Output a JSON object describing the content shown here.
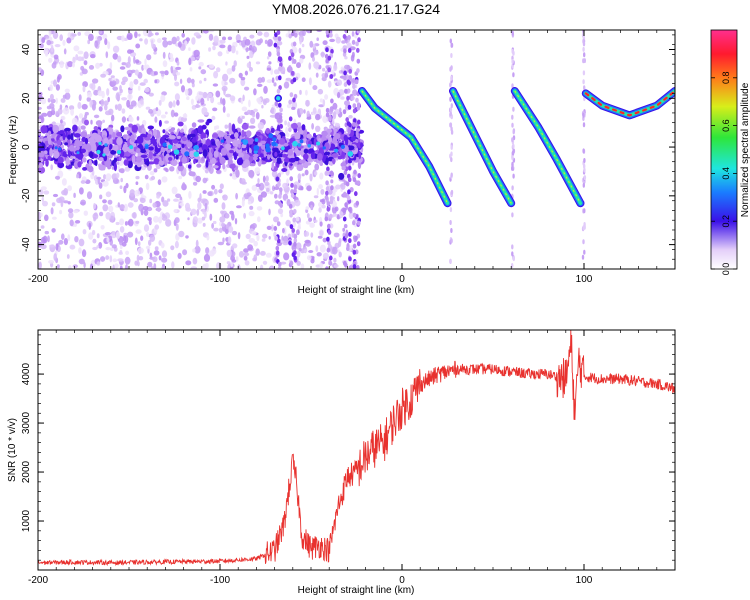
{
  "title": "YM08.2026.076.21.17.G24",
  "colors": {
    "snr_line": "#e8312e",
    "spectrogram_low": "#e9d8fb",
    "spectrogram_mid": "#5a18e6",
    "track": "#22e6a8"
  },
  "colorbar": {
    "label": "Normalized spectral amplitude",
    "ticks": [
      "0.0",
      "0.2",
      "0.4",
      "0.6",
      "0.8"
    ],
    "tick_values": [
      0.0,
      0.2,
      0.4,
      0.6,
      0.8
    ],
    "range": [
      0,
      1
    ]
  },
  "chart_data": [
    {
      "type": "heatmap",
      "xlabel": "Height of straight line (km)",
      "ylabel": "Frequency (Hz)",
      "xlim": [
        -200,
        150
      ],
      "ylim": [
        -50,
        48
      ],
      "x_ticks": [
        -200,
        -100,
        0,
        100
      ],
      "x_tick_labels": [
        "-200",
        "-100",
        "0",
        "100"
      ],
      "y_ticks": [
        -40,
        -20,
        0,
        20,
        40
      ],
      "y_tick_labels": [
        "-40",
        "-20",
        "0",
        "20",
        "40"
      ],
      "noise_band": {
        "x_range": [
          -200,
          -25
        ],
        "center_freq": 0,
        "half_width": 12
      },
      "tracks": [
        {
          "segment": 1,
          "x": [
            -22,
            -15,
            -5,
            5,
            15,
            25
          ],
          "y": [
            23,
            16,
            10,
            4,
            -8,
            -23
          ]
        },
        {
          "segment": 2,
          "x": [
            28,
            40,
            50,
            60
          ],
          "y": [
            23,
            5,
            -10,
            -23
          ]
        },
        {
          "segment": 3,
          "x": [
            62,
            75,
            85,
            98
          ],
          "y": [
            23,
            8,
            -5,
            -23
          ]
        },
        {
          "segment": 4,
          "x": [
            101,
            110,
            125,
            140,
            150
          ],
          "y": [
            22,
            17,
            13,
            17,
            23
          ]
        }
      ],
      "discontinuities": [
        -68,
        27,
        61,
        100
      ],
      "colorbar": "Normalized spectral amplitude"
    },
    {
      "type": "line",
      "xlabel": "Height of straight line (km)",
      "ylabel": "SNR (10 * v/v)",
      "xlim": [
        -200,
        150
      ],
      "ylim": [
        0,
        4900
      ],
      "x_ticks": [
        -200,
        -100,
        0,
        100
      ],
      "x_tick_labels": [
        "-200",
        "-100",
        "0",
        "100"
      ],
      "y_ticks": [
        1000,
        2000,
        3000,
        4000
      ],
      "y_tick_labels": [
        "1000",
        "2000",
        "3000",
        "4000"
      ],
      "series": [
        {
          "x": [
            -200,
            -180,
            -160,
            -140,
            -120,
            -100,
            -80,
            -70,
            -65,
            -60,
            -58,
            -55,
            -50,
            -45,
            -40,
            -35,
            -30,
            -25,
            -20,
            -15,
            -10,
            -5,
            0,
            5,
            10,
            20,
            30,
            40,
            50,
            60,
            70,
            80,
            90,
            93,
            95,
            97,
            100,
            110,
            120,
            130,
            140,
            150
          ],
          "y": [
            150,
            160,
            150,
            160,
            170,
            180,
            230,
            400,
            900,
            2200,
            1800,
            700,
            450,
            500,
            400,
            1300,
            1900,
            2000,
            2300,
            2500,
            2600,
            3000,
            3300,
            3500,
            3800,
            4000,
            4100,
            4100,
            4100,
            4050,
            4000,
            4000,
            3900,
            4600,
            3100,
            4300,
            3950,
            3900,
            3900,
            3850,
            3800,
            3700
          ]
        }
      ]
    }
  ]
}
